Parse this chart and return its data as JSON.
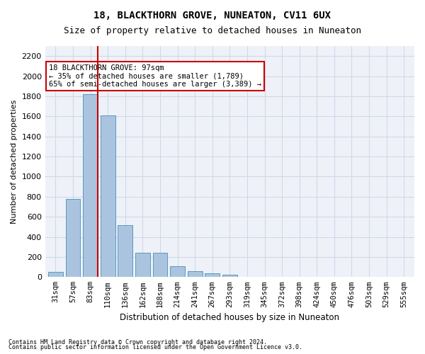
{
  "title1": "18, BLACKTHORN GROVE, NUNEATON, CV11 6UX",
  "title2": "Size of property relative to detached houses in Nuneaton",
  "xlabel": "Distribution of detached houses by size in Nuneaton",
  "ylabel": "Number of detached properties",
  "categories": [
    "31sqm",
    "57sqm",
    "83sqm",
    "110sqm",
    "136sqm",
    "162sqm",
    "188sqm",
    "214sqm",
    "241sqm",
    "267sqm",
    "293sqm",
    "319sqm",
    "345sqm",
    "372sqm",
    "398sqm",
    "424sqm",
    "450sqm",
    "476sqm",
    "503sqm",
    "529sqm",
    "555sqm"
  ],
  "values": [
    55,
    780,
    1820,
    1610,
    520,
    240,
    240,
    110,
    60,
    40,
    20,
    0,
    0,
    0,
    0,
    0,
    0,
    0,
    0,
    0,
    0
  ],
  "bar_color": "#aac4e0",
  "bar_edge_color": "#5a9abf",
  "vline_x": 2,
  "vline_color": "#cc0000",
  "annotation_text": "18 BLACKTHORN GROVE: 97sqm\n← 35% of detached houses are smaller (1,789)\n65% of semi-detached houses are larger (3,389) →",
  "annotation_box_color": "#ffffff",
  "annotation_box_edge_color": "#cc0000",
  "ylim": [
    0,
    2300
  ],
  "yticks": [
    0,
    200,
    400,
    600,
    800,
    1000,
    1200,
    1400,
    1600,
    1800,
    2000,
    2200
  ],
  "footer1": "Contains HM Land Registry data © Crown copyright and database right 2024.",
  "footer2": "Contains public sector information licensed under the Open Government Licence v3.0.",
  "grid_color": "#d0d8e8",
  "bg_color": "#eef2f8"
}
